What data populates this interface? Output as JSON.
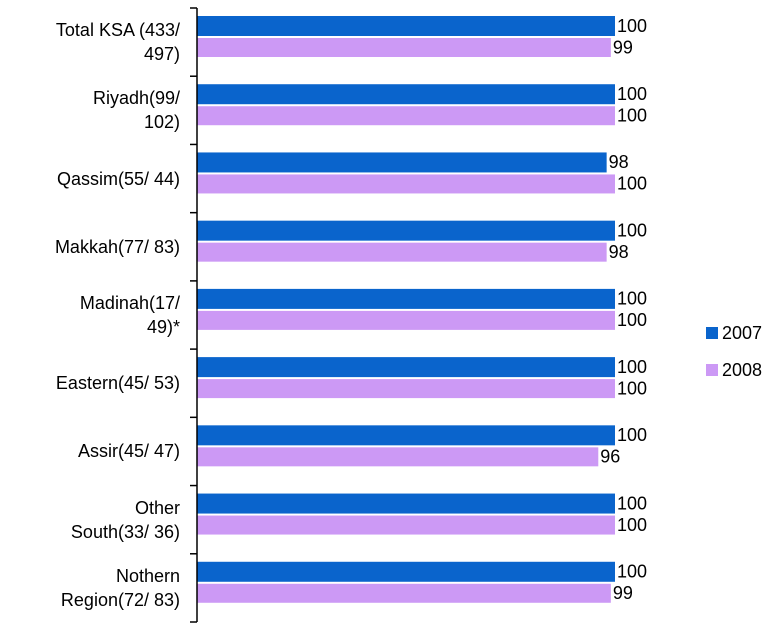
{
  "chart_data": {
    "type": "hbar",
    "categories": [
      "Total KSA (433/\n497)",
      "Riyadh(99/\n102)",
      "Qassim(55/ 44)",
      "Makkah(77/ 83)",
      "Madinah(17/\n49)*",
      "Eastern(45/ 53)",
      "Assir(45/ 47)",
      "Other\nSouth(33/ 36)",
      "Nothern\nRegion(72/ 83)"
    ],
    "series": [
      {
        "name": "2007",
        "color": "#0a64cc",
        "values": [
          100,
          100,
          98,
          100,
          100,
          100,
          100,
          100,
          100
        ]
      },
      {
        "name": "2008",
        "color": "#cc99f5",
        "values": [
          99,
          100,
          100,
          98,
          100,
          100,
          96,
          100,
          99
        ]
      }
    ],
    "xlim": [
      0,
      100
    ],
    "legend": "right"
  }
}
